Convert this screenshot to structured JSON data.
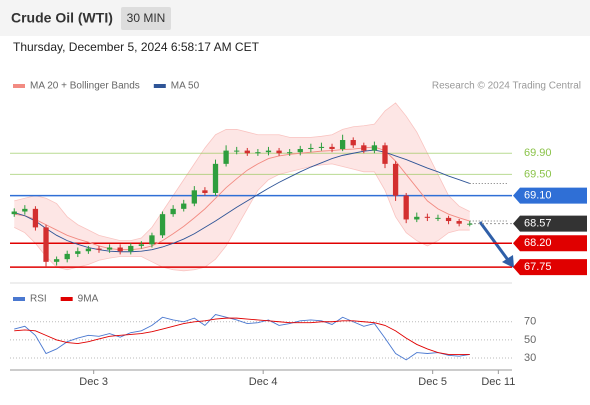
{
  "header": {
    "title": "Crude Oil (WTI)",
    "interval": "30 MIN",
    "timestamp": "Thursday, December 5, 2024 6:58:17 AM CET"
  },
  "chart_data": [
    {
      "type": "candlestick",
      "source": "Research © 2024 Trading Central",
      "up_color": "#2e9e3e",
      "down_color": "#d32f2f",
      "x": [
        0,
        1,
        2,
        3,
        4,
        5,
        6,
        7,
        8,
        9,
        10,
        11,
        12,
        13,
        14,
        15,
        16,
        17,
        18,
        19,
        20,
        21,
        22,
        23,
        24,
        25,
        26,
        27,
        28,
        29,
        30,
        31,
        32,
        33,
        34,
        35,
        36,
        37,
        38,
        39,
        40,
        41,
        42,
        43
      ],
      "open": [
        68.75,
        68.8,
        68.85,
        68.5,
        67.85,
        67.9,
        68.0,
        68.05,
        68.1,
        68.08,
        68.12,
        68.05,
        68.15,
        68.18,
        68.35,
        68.75,
        68.85,
        68.95,
        69.2,
        69.15,
        69.7,
        69.95,
        69.95,
        69.9,
        69.92,
        69.95,
        69.9,
        69.92,
        69.98,
        70.0,
        70.02,
        69.98,
        70.15,
        70.05,
        69.95,
        70.05,
        69.7,
        69.1,
        68.65,
        68.7,
        68.68,
        68.68,
        68.62,
        68.57
      ],
      "high": [
        68.86,
        68.92,
        68.9,
        68.55,
        67.95,
        68.06,
        68.12,
        68.15,
        68.15,
        68.18,
        68.18,
        68.2,
        68.24,
        68.4,
        68.8,
        68.92,
        69.02,
        69.28,
        69.26,
        69.78,
        70.05,
        70.02,
        70.0,
        69.98,
        70.02,
        70.0,
        69.98,
        70.04,
        70.08,
        70.1,
        70.08,
        70.25,
        70.2,
        70.1,
        70.12,
        70.1,
        69.75,
        69.15,
        68.78,
        68.76,
        68.74,
        68.72,
        68.66,
        68.62
      ],
      "low": [
        68.7,
        68.74,
        68.44,
        67.75,
        67.78,
        67.84,
        67.94,
        68.0,
        68.02,
        68.02,
        67.99,
        67.99,
        68.1,
        68.12,
        68.3,
        68.7,
        68.8,
        68.9,
        69.1,
        69.1,
        69.65,
        69.88,
        69.85,
        69.85,
        69.86,
        69.85,
        69.85,
        69.86,
        69.92,
        69.95,
        69.92,
        69.94,
        70.0,
        69.9,
        69.9,
        69.62,
        69.0,
        68.58,
        68.6,
        68.62,
        68.62,
        68.56,
        68.52,
        68.52
      ],
      "close": [
        68.8,
        68.85,
        68.5,
        67.85,
        67.9,
        68.0,
        68.05,
        68.1,
        68.08,
        68.12,
        68.05,
        68.15,
        68.18,
        68.35,
        68.75,
        68.85,
        68.95,
        69.2,
        69.15,
        69.7,
        69.95,
        69.95,
        69.9,
        69.92,
        69.95,
        69.9,
        69.92,
        69.98,
        70.0,
        70.02,
        69.98,
        70.15,
        70.05,
        69.95,
        70.05,
        69.7,
        69.1,
        68.65,
        68.7,
        68.68,
        68.68,
        68.62,
        68.57,
        68.57
      ],
      "series": [
        {
          "name": "MA 20 + Bollinger Bands",
          "color": "#f28b82",
          "band_color": "#fde0df",
          "values": [
            68.75,
            68.72,
            68.65,
            68.55,
            68.45,
            68.35,
            68.28,
            68.22,
            68.15,
            68.1,
            68.08,
            68.08,
            68.1,
            68.15,
            68.25,
            68.38,
            68.52,
            68.68,
            68.85,
            69.05,
            69.25,
            69.42,
            69.58,
            69.7,
            69.8,
            69.85,
            69.88,
            69.9,
            69.92,
            69.94,
            69.95,
            69.97,
            69.98,
            70.0,
            70.02,
            69.95,
            69.75,
            69.5,
            69.25,
            69.0,
            68.85,
            68.75,
            68.68,
            68.62
          ],
          "upper": [
            69.0,
            69.05,
            69.1,
            69.05,
            68.95,
            68.7,
            68.55,
            68.45,
            68.35,
            68.3,
            68.25,
            68.25,
            68.3,
            68.5,
            68.8,
            69.1,
            69.4,
            69.7,
            70.0,
            70.25,
            70.35,
            70.35,
            70.3,
            70.25,
            70.25,
            70.25,
            70.2,
            70.2,
            70.2,
            70.22,
            70.25,
            70.35,
            70.4,
            70.42,
            70.45,
            70.7,
            70.85,
            70.6,
            70.3,
            69.9,
            69.5,
            69.1,
            68.9,
            68.8
          ],
          "lower": [
            68.5,
            68.4,
            68.2,
            67.95,
            67.75,
            67.7,
            67.75,
            67.8,
            67.88,
            67.92,
            67.95,
            67.95,
            67.95,
            67.85,
            67.75,
            67.7,
            67.68,
            67.7,
            67.75,
            67.9,
            68.15,
            68.5,
            68.85,
            69.2,
            69.4,
            69.5,
            69.55,
            69.6,
            69.65,
            69.68,
            69.7,
            69.65,
            69.6,
            69.55,
            69.55,
            69.2,
            68.7,
            68.4,
            68.25,
            68.15,
            68.25,
            68.4,
            68.45,
            68.45
          ]
        },
        {
          "name": "MA 50",
          "color": "#2f5597",
          "values": [
            68.78,
            68.72,
            68.62,
            68.48,
            68.35,
            68.25,
            68.18,
            68.12,
            68.08,
            68.05,
            68.04,
            68.04,
            68.05,
            68.08,
            68.13,
            68.2,
            68.28,
            68.38,
            68.5,
            68.62,
            68.75,
            68.88,
            69.0,
            69.12,
            69.24,
            69.35,
            69.45,
            69.55,
            69.64,
            69.72,
            69.8,
            69.86,
            69.9,
            69.94,
            69.96,
            69.92,
            69.85,
            69.78,
            69.7,
            69.62,
            69.55,
            69.47,
            69.4,
            69.33
          ]
        }
      ],
      "levels": [
        {
          "value": 69.9,
          "label": "69.90",
          "color": "#8bc34a",
          "box": false
        },
        {
          "value": 69.5,
          "label": "69.50",
          "color": "#8bc34a",
          "box": false
        },
        {
          "value": 69.1,
          "label": "69.10",
          "color": "#2f6fd6",
          "box": true
        },
        {
          "value": 68.57,
          "label": "68.57",
          "color": "#333333",
          "box": true
        },
        {
          "value": 68.2,
          "label": "68.20",
          "color": "#e00000",
          "box": true
        },
        {
          "value": 67.75,
          "label": "67.75",
          "color": "#e00000",
          "box": true
        }
      ],
      "xlim": [
        -0.4,
        46.8
      ],
      "ylim": [
        67.45,
        71.0
      ]
    },
    {
      "type": "line",
      "series": [
        {
          "name": "RSI",
          "color": "#4a78d0",
          "values": [
            62,
            65,
            55,
            35,
            40,
            48,
            52,
            55,
            54,
            57,
            53,
            58,
            60,
            66,
            75,
            72,
            70,
            74,
            66,
            78,
            75,
            72,
            68,
            69,
            72,
            66,
            68,
            71,
            72,
            71,
            67,
            75,
            70,
            65,
            68,
            52,
            35,
            28,
            36,
            35,
            36,
            33,
            32,
            34
          ]
        },
        {
          "name": "9MA",
          "color": "#e00000",
          "values": [
            60,
            61,
            60,
            55,
            50,
            47,
            46,
            48,
            51,
            54,
            55,
            56,
            57,
            59,
            62,
            65,
            68,
            70,
            71,
            73,
            74,
            74,
            73,
            72,
            71,
            70,
            69,
            69,
            69,
            70,
            70,
            71,
            71,
            70,
            69,
            66,
            60,
            52,
            45,
            40,
            36,
            34,
            34,
            34
          ]
        }
      ],
      "ylim": [
        19,
        94
      ],
      "yticks": [
        30,
        50,
        70
      ],
      "xticks": [
        {
          "value": 7.5,
          "label": "Dec 3"
        },
        {
          "value": 23.5,
          "label": "Dec 4"
        },
        {
          "value": 39.5,
          "label": "Dec 5"
        },
        {
          "value": 45.7,
          "label": "Dec 11"
        }
      ]
    }
  ]
}
